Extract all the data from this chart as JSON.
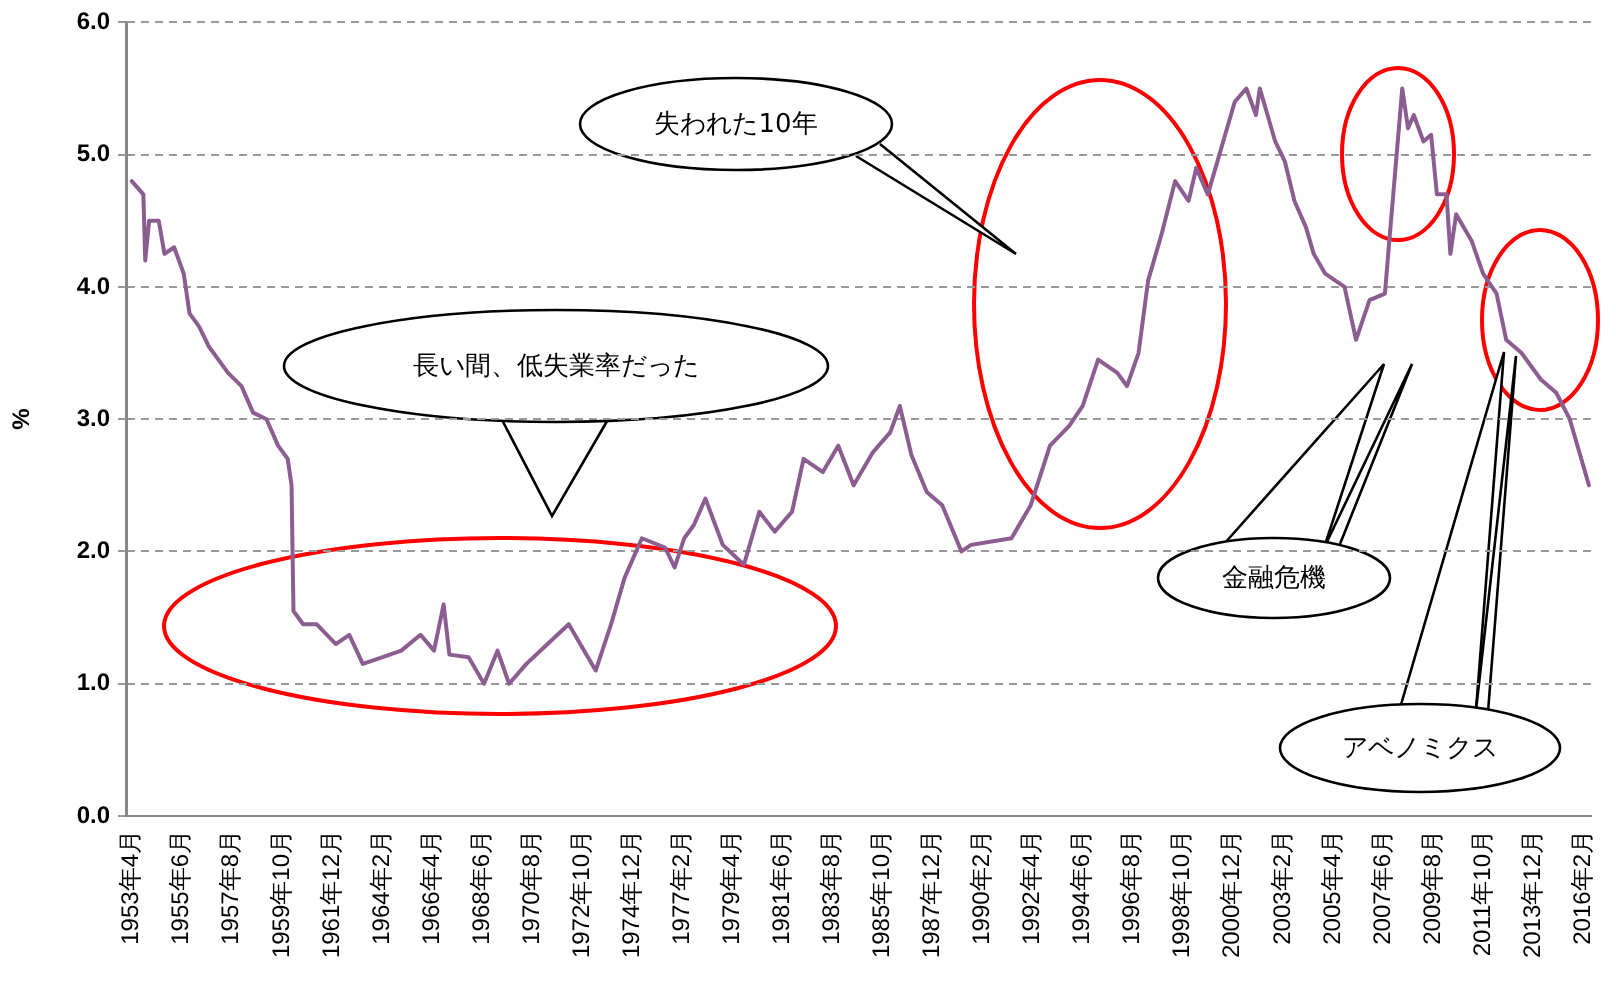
{
  "chart_data": {
    "type": "line",
    "ylabel": "%",
    "annotations": [
      "長い間、低失業率だった",
      "失われた10年",
      "金融危機",
      "アベノミクス"
    ],
    "x": [
      "1953-04",
      "1953-10",
      "1953-11",
      "1954-01",
      "1954-06",
      "1954-09",
      "1955-02",
      "1955-07",
      "1955-10",
      "1956-03",
      "1956-08",
      "1957-01",
      "1957-06",
      "1958-01",
      "1958-07",
      "1959-02",
      "1959-08",
      "1960-01",
      "1960-03",
      "1960-04",
      "1960-09",
      "1961-04",
      "1962-02",
      "1962-09",
      "1963-04",
      "1964-02",
      "1964-12",
      "1965-10",
      "1966-05",
      "1966-10",
      "1967-01",
      "1967-11",
      "1968-07",
      "1969-02",
      "1969-08",
      "1970-05",
      "1971-04",
      "1972-03",
      "1973-05",
      "1974-01",
      "1974-08",
      "1975-05",
      "1976-05",
      "1976-10",
      "1977-03",
      "1977-08",
      "1978-02",
      "1978-11",
      "1979-10",
      "1980-06",
      "1981-02",
      "1981-11",
      "1982-05",
      "1983-03",
      "1983-11",
      "1984-07",
      "1985-05",
      "1986-02",
      "1986-07",
      "1987-01",
      "1987-09",
      "1988-05",
      "1989-03",
      "1989-08",
      "1991-05",
      "1992-03",
      "1993-01",
      "1993-11",
      "1994-06",
      "1995-02",
      "1995-12",
      "1996-05",
      "1996-11",
      "1997-04",
      "1997-11",
      "1998-06",
      "1999-01",
      "1999-05",
      "1999-11",
      "2000-06",
      "2001-01",
      "2001-07",
      "2001-12",
      "2002-02",
      "2002-10",
      "2003-03",
      "2003-08",
      "2004-02",
      "2004-06",
      "2004-12",
      "2005-10",
      "2006-04",
      "2006-11",
      "2007-07",
      "2007-09",
      "2008-04",
      "2008-07",
      "2008-10",
      "2009-03",
      "2009-07",
      "2009-10",
      "2010-03",
      "2010-05",
      "2010-08",
      "2011-04",
      "2011-10",
      "2012-05",
      "2012-10",
      "2013-06",
      "2014-04",
      "2014-12",
      "2015-07",
      "2015-10",
      "2016-05"
    ],
    "series": [
      {
        "color": "#8c5d90",
        "values": [
          4.8,
          4.7,
          4.2,
          4.5,
          4.5,
          4.25,
          4.3,
          4.1,
          3.8,
          3.7,
          3.55,
          3.45,
          3.35,
          3.25,
          3.05,
          3.0,
          2.8,
          2.7,
          2.5,
          1.55,
          1.45,
          1.45,
          1.3,
          1.37,
          1.15,
          1.2,
          1.25,
          1.37,
          1.25,
          1.6,
          1.22,
          1.2,
          1.0,
          1.25,
          1.0,
          1.15,
          1.3,
          1.45,
          1.1,
          1.45,
          1.8,
          2.1,
          2.03,
          1.88,
          2.1,
          2.2,
          2.4,
          2.05,
          1.9,
          2.3,
          2.15,
          2.3,
          2.7,
          2.6,
          2.8,
          2.5,
          2.75,
          2.9,
          3.1,
          2.73,
          2.45,
          2.35,
          2.0,
          2.05,
          2.1,
          2.35,
          2.8,
          2.95,
          3.1,
          3.45,
          3.35,
          3.25,
          3.5,
          4.05,
          4.4,
          4.8,
          4.65,
          4.9,
          4.7,
          5.05,
          5.4,
          5.5,
          5.3,
          5.5,
          5.1,
          4.95,
          4.65,
          4.45,
          4.25,
          4.1,
          4.0,
          3.6,
          3.9,
          3.95,
          4.3,
          5.5,
          5.2,
          5.3,
          5.1,
          5.15,
          4.7,
          4.7,
          4.25,
          4.55,
          4.35,
          4.1,
          3.95,
          3.6,
          3.5,
          3.3,
          3.2,
          3.0,
          2.85,
          2.5
        ]
      }
    ],
    "xlim": [
      "1953-01",
      "2016-06"
    ],
    "xticks": [
      {
        "value": "1953-04",
        "label": "1953年4月"
      },
      {
        "value": "1955-06",
        "label": "1955年6月"
      },
      {
        "value": "1957-08",
        "label": "1957年8月"
      },
      {
        "value": "1959-10",
        "label": "1959年10月"
      },
      {
        "value": "1961-12",
        "label": "1961年12月"
      },
      {
        "value": "1964-02",
        "label": "1964年2月"
      },
      {
        "value": "1966-04",
        "label": "1966年4月"
      },
      {
        "value": "1968-06",
        "label": "1968年6月"
      },
      {
        "value": "1970-08",
        "label": "1970年8月"
      },
      {
        "value": "1972-10",
        "label": "1972年10月"
      },
      {
        "value": "1974-12",
        "label": "1974年12月"
      },
      {
        "value": "1977-02",
        "label": "1977年2月"
      },
      {
        "value": "1979-04",
        "label": "1979年4月"
      },
      {
        "value": "1981-06",
        "label": "1981年6月"
      },
      {
        "value": "1983-08",
        "label": "1983年8月"
      },
      {
        "value": "1985-10",
        "label": "1985年10月"
      },
      {
        "value": "1987-12",
        "label": "1987年12月"
      },
      {
        "value": "1990-02",
        "label": "1990年2月"
      },
      {
        "value": "1992-04",
        "label": "1992年4月"
      },
      {
        "value": "1994-06",
        "label": "1994年6月"
      },
      {
        "value": "1996-08",
        "label": "1996年8月"
      },
      {
        "value": "1998-10",
        "label": "1998年10月"
      },
      {
        "value": "2000-12",
        "label": "2000年12月"
      },
      {
        "value": "2003-02",
        "label": "2003年2月"
      },
      {
        "value": "2005-04",
        "label": "2005年4月"
      },
      {
        "value": "2007-06",
        "label": "2007年6月"
      },
      {
        "value": "2009-08",
        "label": "2009年8月"
      },
      {
        "value": "2011-10",
        "label": "2011年10月"
      },
      {
        "value": "2013-12",
        "label": "2013年12月"
      },
      {
        "value": "2016-02",
        "label": "2016年2月"
      }
    ],
    "ylim": [
      0,
      6
    ],
    "yticks": [
      {
        "value": 0,
        "label": "0.0"
      },
      {
        "value": 1,
        "label": "1.0"
      },
      {
        "value": 2,
        "label": "2.0"
      },
      {
        "value": 3,
        "label": "3.0"
      },
      {
        "value": 4,
        "label": "4.0"
      },
      {
        "value": 5,
        "label": "5.0"
      },
      {
        "value": 6,
        "label": "6.0"
      }
    ],
    "grid": "y",
    "legend": false,
    "marker": "none",
    "line_style": "solid"
  }
}
